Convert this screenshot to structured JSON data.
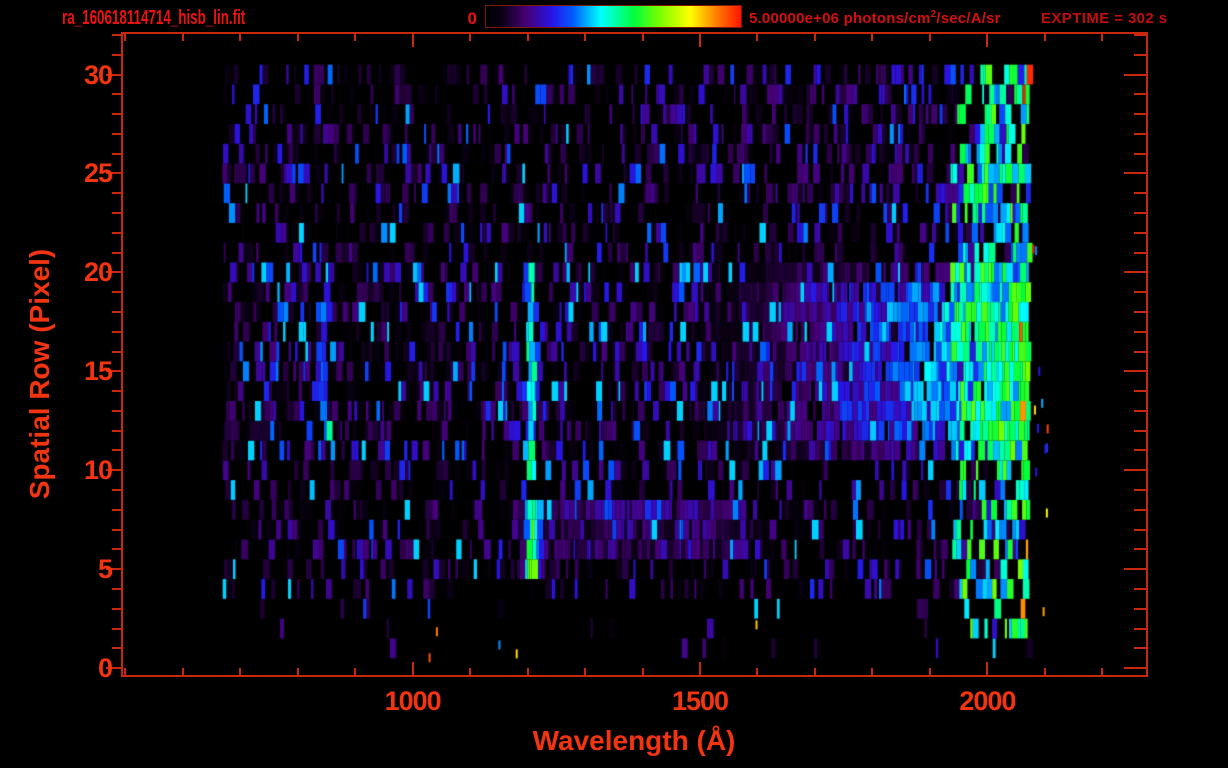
{
  "header": {
    "filename": "ra_160618114714_hisb_lin.fit",
    "colorbar_min_label": "0",
    "colorbar_max_value": "5.00000e+06",
    "colorbar_units_prefix": " photons/cm",
    "colorbar_units_sup": "2",
    "colorbar_units_suffix": "/sec/A/sr",
    "exptime_label": "EXPTIME = 302 s"
  },
  "colors": {
    "annotation_red": "#ee1111",
    "axis_red": "#c8290e",
    "label_red": "#f23410",
    "units_red": "#d60f0f",
    "exptime_red": "#c20e0e",
    "colorbar_border": "#7f1606",
    "background": "#000000"
  },
  "chart_data": {
    "type": "heatmap",
    "title": "ra_160618114714_hisb_lin.fit",
    "xlabel": "Wavelength (Å)",
    "ylabel": "Spatial Row (Pixel)",
    "x_range": [
      496,
      2276
    ],
    "y_range": [
      -0.35,
      32.05
    ],
    "x_major_ticks": [
      1000,
      1500,
      2000
    ],
    "x_minor_step": 100,
    "y_major_ticks": [
      0,
      5,
      10,
      15,
      20,
      25,
      30
    ],
    "y_minor_step": 1,
    "grid": false,
    "legend": "colorbar-top",
    "colorbar": {
      "min": 0,
      "max": 5000000,
      "min_label": "0",
      "max_label": "5.00000e+06 photons/cm2/sec/A/sr"
    },
    "exposure_time_s": 302,
    "data_extent": {
      "wavelength_A": [
        668,
        2070
      ],
      "rows": [
        1,
        30
      ]
    },
    "seed": 1337,
    "colormap": [
      [
        0.0,
        0,
        0,
        0
      ],
      [
        0.06,
        10,
        0,
        20
      ],
      [
        0.16,
        70,
        0,
        120
      ],
      [
        0.26,
        40,
        20,
        230
      ],
      [
        0.34,
        0,
        90,
        255
      ],
      [
        0.45,
        0,
        255,
        255
      ],
      [
        0.58,
        0,
        255,
        60
      ],
      [
        0.68,
        120,
        255,
        0
      ],
      [
        0.8,
        255,
        255,
        0
      ],
      [
        0.9,
        255,
        130,
        0
      ],
      [
        1.0,
        255,
        20,
        0
      ]
    ],
    "noise_bands": [
      {
        "rows": [
          21,
          30
        ],
        "base": 0.16,
        "gap_prob": 0.5
      },
      {
        "rows": [
          11,
          20
        ],
        "base": 0.2,
        "gap_prob": 0.38
      },
      {
        "rows": [
          4,
          10
        ],
        "base": 0.17,
        "gap_prob": 0.5
      },
      {
        "rows": [
          1,
          3
        ],
        "base": 0.22,
        "gap_prob": 0.94
      }
    ],
    "features": [
      {
        "name": "airglow-arc-834",
        "type": "curved-line",
        "wl_vertex": 838,
        "row_vertex": 15.5,
        "curvature": 0.8,
        "row_range": [
          12,
          20.5
        ],
        "half_width_A": 9,
        "intensity_core": 0.52,
        "intensity_wing": 0.3
      },
      {
        "name": "lyman-alpha-line-1216",
        "type": "vertical-line",
        "wl_center": 1203,
        "half_width_A": 6,
        "row_range": [
          9.5,
          20.5
        ],
        "intensity": 0.46
      },
      {
        "name": "lyman-alpha-blob",
        "type": "blob",
        "wl_center": 1205,
        "sigma_A": 16,
        "row_range": [
          4.7,
          8.6
        ],
        "intensity": 0.64
      },
      {
        "name": "uv-continuum",
        "type": "ramp",
        "wl_range": [
          1400,
          2070
        ],
        "row_range": [
          10.6,
          20.5
        ],
        "row_core": [
          12,
          19
        ],
        "intensity_max": 0.62,
        "gap_prob": 0.12
      },
      {
        "name": "long-wavelength-edge-glow",
        "type": "edge",
        "wl_range": [
          1935,
          2070
        ],
        "row_range": [
          2,
          30
        ],
        "intensity_min": 0.34,
        "intensity_max": 0.68,
        "hot_pixel_wl": 2055,
        "hot_pixel_prob": 0.1
      },
      {
        "name": "post-blob-blue-band",
        "type": "band",
        "wl_range": [
          1230,
          1580
        ],
        "row_range": [
          6,
          8.2
        ],
        "intensity": 0.17
      },
      {
        "name": "upper-rows-blue-trend",
        "type": "ramp",
        "wl_range": [
          1500,
          2070
        ],
        "row_range": [
          21,
          30
        ],
        "intensity_max": 0.3
      }
    ],
    "stray_pixels": [
      {
        "zone": "beyond-red-edge",
        "wl_range": [
          2072,
          2108
        ],
        "row_range": [
          1,
          30
        ],
        "count": 12
      },
      {
        "zone": "bottom-rows",
        "wl_range": [
          900,
          1750
        ],
        "row_range": [
          0.4,
          2.6
        ],
        "count": 5
      }
    ]
  }
}
